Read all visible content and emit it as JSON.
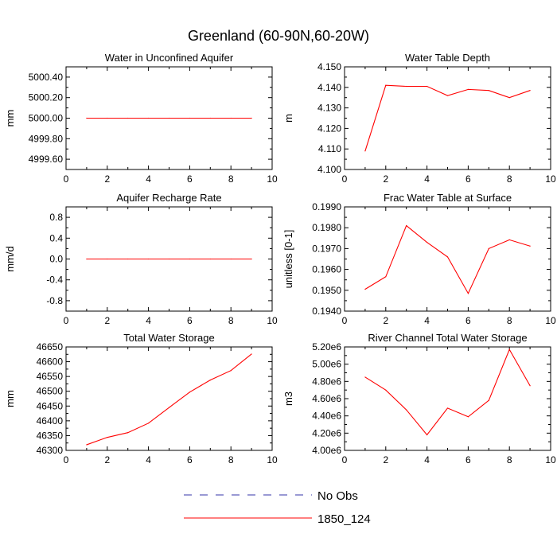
{
  "figure_title": "Greenland (60-90N,60-20W)",
  "colors": {
    "model": "#ff0000",
    "obs": "#3333aa",
    "frame": "#000000"
  },
  "legend": [
    {
      "label": "No Obs",
      "style": "dashed",
      "color": "#3333aa"
    },
    {
      "label": "1850_124",
      "style": "solid",
      "color": "#ff0000"
    }
  ],
  "chart_data": [
    {
      "type": "line",
      "title": "Water in Unconfined Aquifer",
      "ylabel": "mm",
      "xlim": [
        0,
        10
      ],
      "ylim": [
        4999.5,
        5000.5
      ],
      "xticks": [
        0,
        2,
        4,
        6,
        8,
        10
      ],
      "yticks": [
        4999.6,
        4999.8,
        5000.0,
        5000.2,
        5000.4
      ],
      "ytick_labels": [
        "4999.60",
        "4999.80",
        "5000.00",
        "5000.20",
        "5000.40"
      ],
      "series": [
        {
          "name": "1850_124",
          "x": [
            1,
            2,
            3,
            4,
            5,
            6,
            7,
            8,
            9
          ],
          "values": [
            5000,
            5000,
            5000,
            5000,
            5000,
            5000,
            5000,
            5000,
            5000
          ]
        }
      ]
    },
    {
      "type": "line",
      "title": "Water Table Depth",
      "ylabel": "m",
      "xlim": [
        0,
        10
      ],
      "ylim": [
        4.1,
        4.15
      ],
      "xticks": [
        0,
        2,
        4,
        6,
        8,
        10
      ],
      "yticks": [
        4.1,
        4.11,
        4.12,
        4.13,
        4.14,
        4.15
      ],
      "ytick_labels": [
        "4.100",
        "4.110",
        "4.120",
        "4.130",
        "4.140",
        "4.150"
      ],
      "series": [
        {
          "name": "1850_124",
          "x": [
            1,
            2,
            3,
            4,
            5,
            6,
            7,
            8,
            9
          ],
          "values": [
            4.109,
            4.141,
            4.1405,
            4.1405,
            4.136,
            4.139,
            4.1385,
            4.135,
            4.1385
          ]
        }
      ]
    },
    {
      "type": "line",
      "title": "Aquifer Recharge Rate",
      "ylabel": "mm/d",
      "xlim": [
        0,
        10
      ],
      "ylim": [
        -1,
        1
      ],
      "xticks": [
        0,
        2,
        4,
        6,
        8,
        10
      ],
      "yticks": [
        -0.8,
        -0.4,
        0,
        0.4,
        0.8
      ],
      "ytick_labels": [
        "-0.8",
        "-0.4",
        "0.0",
        "0.4",
        "0.8"
      ],
      "series": [
        {
          "name": "1850_124",
          "x": [
            1,
            2,
            3,
            4,
            5,
            6,
            7,
            8,
            9
          ],
          "values": [
            0,
            0,
            0,
            0,
            0,
            0,
            0,
            0,
            0
          ]
        }
      ]
    },
    {
      "type": "line",
      "title": "Frac Water Table at Surface",
      "ylabel": "unitless [0-1]",
      "xlim": [
        0,
        10
      ],
      "ylim": [
        0.194,
        0.199
      ],
      "xticks": [
        0,
        2,
        4,
        6,
        8,
        10
      ],
      "yticks": [
        0.194,
        0.195,
        0.196,
        0.197,
        0.198,
        0.199
      ],
      "ytick_labels": [
        "0.1940",
        "0.1950",
        "0.1960",
        "0.1970",
        "0.1980",
        "0.1990"
      ],
      "series": [
        {
          "name": "1850_124",
          "x": [
            1,
            2,
            3,
            4,
            5,
            6,
            7,
            8,
            9
          ],
          "values": [
            0.19505,
            0.19565,
            0.1981,
            0.1973,
            0.1966,
            0.19485,
            0.197,
            0.19742,
            0.19712
          ]
        }
      ]
    },
    {
      "type": "line",
      "title": "Total Water Storage",
      "ylabel": "mm",
      "xlim": [
        0,
        10
      ],
      "ylim": [
        46300,
        46650
      ],
      "xticks": [
        0,
        2,
        4,
        6,
        8,
        10
      ],
      "yticks": [
        46300,
        46350,
        46400,
        46450,
        46500,
        46550,
        46600,
        46650
      ],
      "ytick_labels": [
        "46300",
        "46350",
        "46400",
        "46450",
        "46500",
        "46550",
        "46600",
        "46650"
      ],
      "series": [
        {
          "name": "1850_124",
          "x": [
            1,
            2,
            3,
            4,
            5,
            6,
            7,
            8,
            9
          ],
          "values": [
            46319,
            46344,
            46360,
            46392,
            46445,
            46497,
            46538,
            46570,
            46626
          ]
        }
      ]
    },
    {
      "type": "line",
      "title": "River Channel Total Water Storage",
      "ylabel": "m3",
      "xlim": [
        0,
        10
      ],
      "ylim": [
        4000000,
        5200000
      ],
      "xticks": [
        0,
        2,
        4,
        6,
        8,
        10
      ],
      "yticks": [
        4000000,
        4200000,
        4400000,
        4600000,
        4800000,
        5000000,
        5200000
      ],
      "ytick_labels": [
        "4.00e6",
        "4.20e6",
        "4.40e6",
        "4.60e6",
        "4.80e6",
        "5.00e6",
        "5.20e6"
      ],
      "series": [
        {
          "name": "1850_124",
          "x": [
            1,
            2,
            3,
            4,
            5,
            6,
            7,
            8,
            9
          ],
          "values": [
            4850000,
            4700000,
            4470000,
            4180000,
            4490000,
            4390000,
            4580000,
            5170000,
            4750000
          ]
        }
      ]
    }
  ]
}
